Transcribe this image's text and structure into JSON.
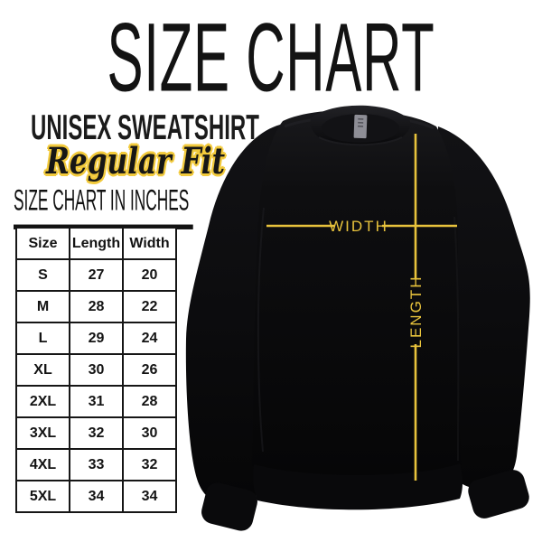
{
  "page": {
    "title": "SIZE CHART"
  },
  "product": {
    "name": "UNISEX SWEATSHIRT",
    "fit": "Regular Fit"
  },
  "section": {
    "heading": "SIZE CHART IN INCHES"
  },
  "table": {
    "headers": [
      "Size",
      "Length",
      "Width"
    ],
    "rows": [
      [
        "S",
        "27",
        "20"
      ],
      [
        "M",
        "28",
        "22"
      ],
      [
        "L",
        "29",
        "24"
      ],
      [
        "XL",
        "30",
        "26"
      ],
      [
        "2XL",
        "31",
        "28"
      ],
      [
        "3XL",
        "32",
        "30"
      ],
      [
        "4XL",
        "33",
        "32"
      ],
      [
        "5XL",
        "34",
        "34"
      ]
    ]
  },
  "diagram": {
    "width_label": "WIDTH",
    "length_label": "LENGTH"
  },
  "colors": {
    "accent_yellow": "#e8c33c",
    "outline_yellow": "#f2ca3c",
    "text_black": "#141414",
    "garment_black": "#0b0b0d",
    "collar_tag_gray": "#8e8e96"
  }
}
